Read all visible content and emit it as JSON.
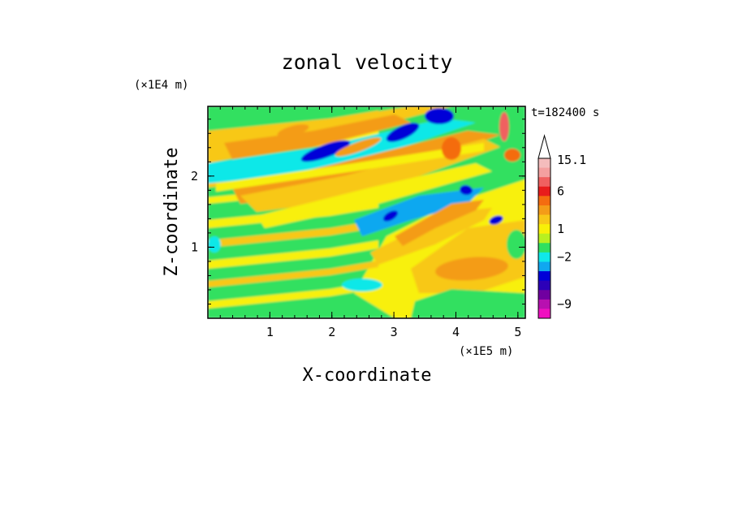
{
  "chart_data": {
    "type": "heatmap",
    "title": "zonal velocity",
    "xlabel": "X-coordinate",
    "ylabel": "Z-coordinate",
    "x_scale_note": "(×1E5 m)",
    "y_scale_note": "(×1E4 m)",
    "time_label": "t=182400 s",
    "xlim": [
      0,
      5.12
    ],
    "ylim": [
      0,
      2.98
    ],
    "x_ticks": [
      "1",
      "2",
      "3",
      "4",
      "5"
    ],
    "y_ticks": [
      "1",
      "2"
    ],
    "colorbar": {
      "tick_labels": [
        "15.1",
        "6",
        "1",
        "−2",
        "−9"
      ],
      "bins_top_to_bottom": [
        {
          "color": "#f4bcbc"
        },
        {
          "color": "#f4a0a0"
        },
        {
          "color": "#f06060"
        },
        {
          "color": "#e81c1c"
        },
        {
          "color": "#f46c10"
        },
        {
          "color": "#f49c18"
        },
        {
          "color": "#f8c818"
        },
        {
          "color": "#f8f008"
        },
        {
          "color": "#b8f020"
        },
        {
          "color": "#30e060"
        },
        {
          "color": "#10e8e8"
        },
        {
          "color": "#10a8f0"
        },
        {
          "color": "#0000d8"
        },
        {
          "color": "#2c00b8"
        },
        {
          "color": "#7000a0"
        },
        {
          "color": "#b810b0"
        },
        {
          "color": "#f010c0"
        }
      ]
    },
    "palette": {
      "green": "#30e060",
      "cyan": "#10e8e8",
      "yellow": "#f8f008",
      "gold": "#f8c818",
      "orange": "#f49c18",
      "red_orange": "#f46c10",
      "blue": "#0000d8",
      "sky": "#10a8f0",
      "light_red": "#f06060"
    }
  }
}
